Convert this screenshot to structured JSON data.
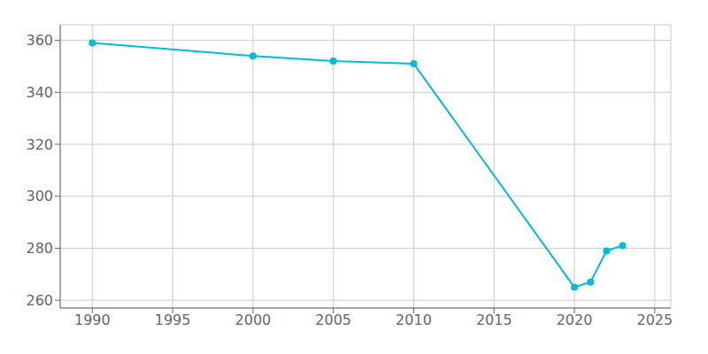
{
  "chart_data": {
    "type": "line",
    "x": [
      1990,
      2000,
      2005,
      2010,
      2020,
      2021,
      2022,
      2023
    ],
    "values": [
      359,
      354,
      352,
      351,
      265,
      267,
      279,
      281
    ],
    "color": "#00bcd4",
    "marker": "circle",
    "xlim": [
      1988,
      2026
    ],
    "ylim": [
      257,
      366
    ],
    "xticks": [
      1990,
      1995,
      2000,
      2005,
      2010,
      2015,
      2020,
      2025
    ],
    "yticks": [
      260,
      280,
      300,
      320,
      340,
      360
    ],
    "grid": true
  }
}
